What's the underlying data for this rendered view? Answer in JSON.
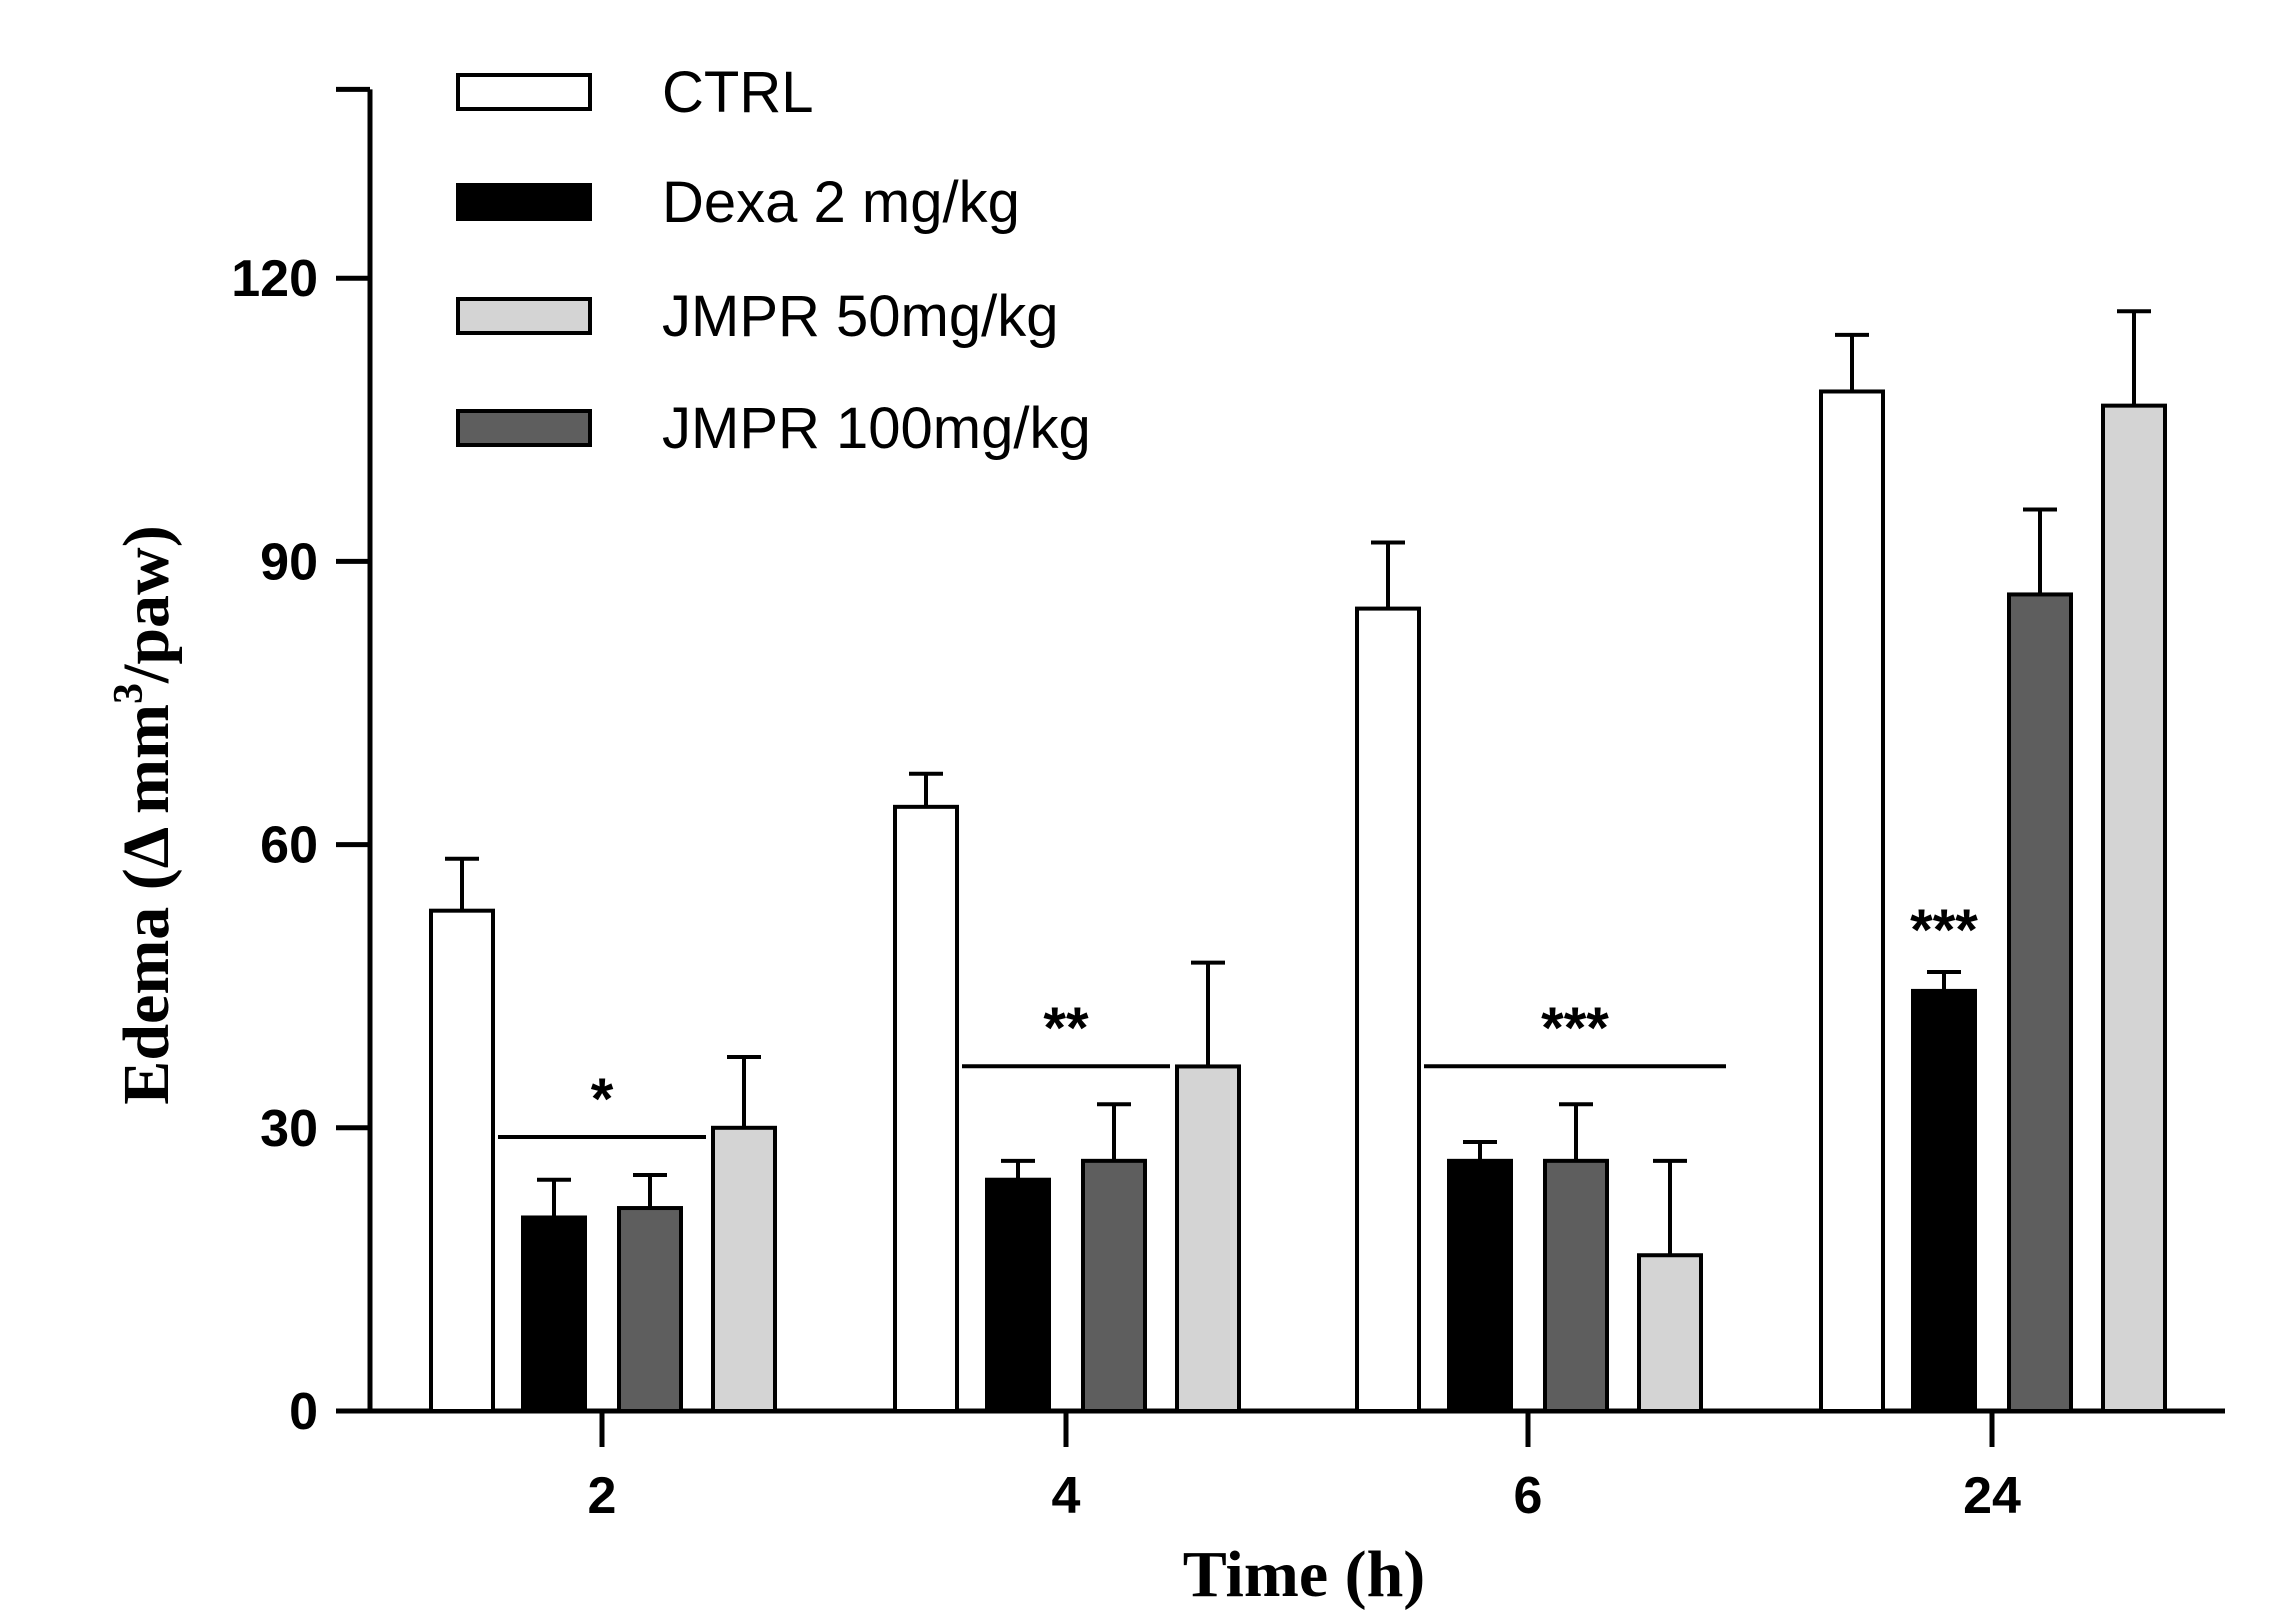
{
  "chart_data": {
    "type": "bar",
    "title": "",
    "xlabel": "Time (h)",
    "ylabel_main": "Edema (Δ mm",
    "ylabel_sup": "3",
    "ylabel_tail": "/paw)",
    "ylim": [
      0,
      140
    ],
    "yticks": [
      0,
      30,
      60,
      90,
      120
    ],
    "categories": [
      "2",
      "4",
      "6",
      "24"
    ],
    "series": [
      {
        "name": "CTRL",
        "color": "#ffffff",
        "values": [
          53,
          64,
          85,
          108
        ],
        "errors": [
          5.5,
          3.5,
          7,
          6
        ]
      },
      {
        "name": "Dexa 2 mg/kg",
        "color": "#000000",
        "values": [
          20.5,
          24.5,
          26.5,
          44.5
        ],
        "errors": [
          4,
          2,
          2,
          2
        ]
      },
      {
        "name": "JMPR 100mg/kg",
        "color": "#5e5e5e",
        "values": [
          21.5,
          26.5,
          26.5,
          86.5
        ],
        "errors": [
          3.5,
          6,
          6,
          9
        ]
      },
      {
        "name": "JMPR 50mg/kg",
        "color": "#d4d4d4",
        "values": [
          30,
          36.5,
          16.5,
          106.5
        ],
        "errors": [
          7.5,
          11,
          10,
          10
        ]
      }
    ],
    "legend": [
      {
        "label": "CTRL",
        "color": "#ffffff"
      },
      {
        "label": "Dexa 2 mg/kg",
        "color": "#000000"
      },
      {
        "label": "JMPR 50mg/kg",
        "color": "#d4d4d4"
      },
      {
        "label": "JMPR 100mg/kg",
        "color": "#5e5e5e"
      }
    ],
    "legend_position": "top-left",
    "annotations": [
      {
        "text": "*",
        "category": "2",
        "from_series": 1,
        "to_series": 2,
        "bracket": true
      },
      {
        "text": "**",
        "category": "4",
        "from_series": 1,
        "to_series": 2,
        "bracket": true
      },
      {
        "text": "***",
        "category": "6",
        "from_series": 1,
        "to_series": 3,
        "bracket": true
      },
      {
        "text": "***",
        "category": "24",
        "from_series": 1,
        "to_series": 1,
        "bracket": false
      }
    ]
  }
}
